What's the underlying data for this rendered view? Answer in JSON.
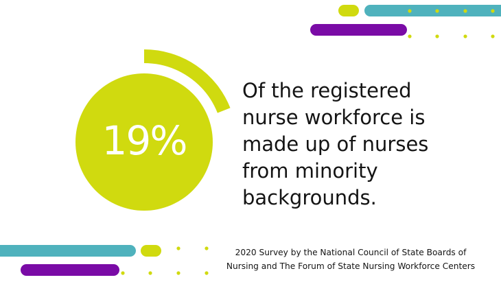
{
  "colors": {
    "lime": "#d0da0f",
    "teal": "#4fb2bd",
    "purple": "#7a0ba6",
    "text": "#141414",
    "background": "#ffffff"
  },
  "stat": {
    "value": "19%",
    "fraction": 0.19,
    "text": "Of the registered\nnurse workforce is\nmade up of nurses\nfrom minority\nbackgrounds."
  },
  "source": {
    "text": "2020 Survey by the National Council of State Boards of\nNursing and The Forum of State Nursing Workforce Centers"
  }
}
